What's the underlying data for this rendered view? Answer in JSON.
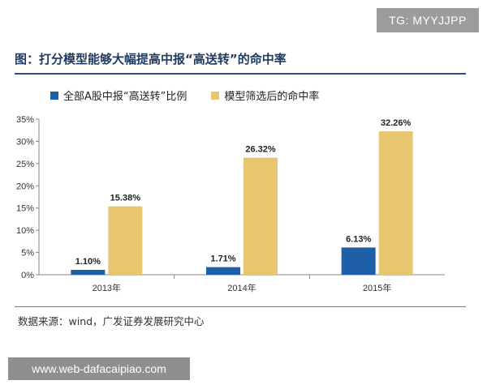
{
  "watermark_top": "TG: MYYJJPP",
  "watermark_bottom": "www.web-dafacaipiao.com",
  "source_note": "数据来源：wind，广发证券发展研究中心",
  "colors": {
    "series1": "#1f5fa8",
    "series2": "#e8c56f",
    "title": "#1f3a5f"
  },
  "chart_data": {
    "type": "bar",
    "title": "图：打分模型能够大幅提高中报“高送转”的命中率",
    "categories": [
      "2013年",
      "2014年",
      "2015年"
    ],
    "series": [
      {
        "name": "全部A股中报“高送转”比例",
        "values": [
          1.1,
          1.71,
          6.13
        ],
        "labels": [
          "1.10%",
          "1.71%",
          "6.13%"
        ]
      },
      {
        "name": "模型筛选后的命中率",
        "values": [
          15.38,
          26.32,
          32.26
        ],
        "labels": [
          "15.38%",
          "26.32%",
          "32.26%"
        ]
      }
    ],
    "ylim": [
      0,
      35
    ],
    "yticks": [
      0,
      5,
      10,
      15,
      20,
      25,
      30,
      35
    ],
    "ytick_labels": [
      "0%",
      "5%",
      "10%",
      "15%",
      "20%",
      "25%",
      "30%",
      "35%"
    ],
    "legend_position": "top-left",
    "grid": false
  }
}
